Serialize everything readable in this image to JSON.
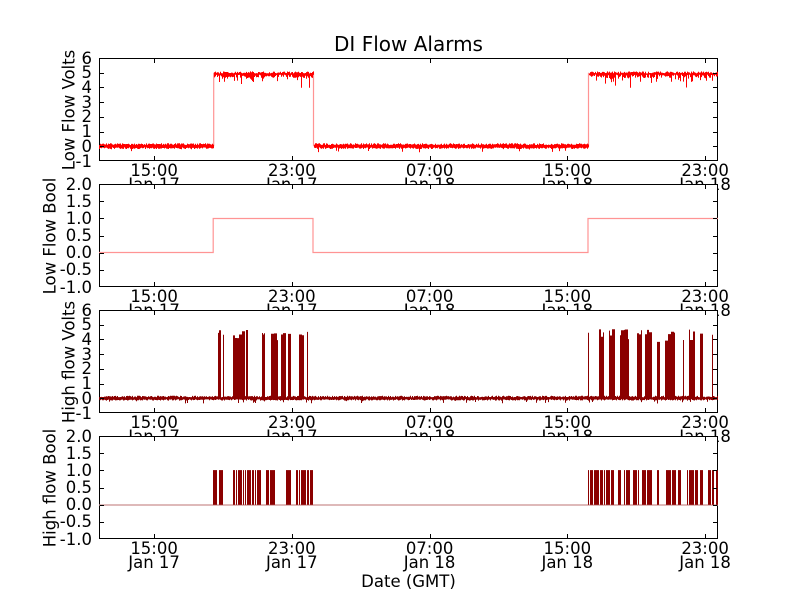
{
  "title": "DI Flow Alarms",
  "xlabel": "Date (GMT)",
  "colors": {
    "red": "#ff0000",
    "red_light": "#ff9494",
    "darkred": "#8b0000",
    "darkred_light": "#c98f8f",
    "axes": "#000000",
    "background": "#ffffff"
  },
  "x_axis": {
    "hours_origin": "Jan 17 00:00 GMT",
    "xlim_hours": [
      11.8,
      47.75
    ],
    "ticks": [
      {
        "hour": 15,
        "time": "15:00",
        "date": "Jan 17"
      },
      {
        "hour": 23,
        "time": "23:00",
        "date": "Jan 17"
      },
      {
        "hour": 31,
        "time": "07:00",
        "date": "Jan 18"
      },
      {
        "hour": 39,
        "time": "15:00",
        "date": "Jan 18"
      },
      {
        "hour": 47,
        "time": "23:00",
        "date": "Jan 18"
      }
    ]
  },
  "chart_data": [
    {
      "type": "line",
      "name": "Low Flow Volts",
      "style": "noisy-analog-step",
      "color_key": "red",
      "ylabel": "Low Flow Volts",
      "ylim": [
        -1,
        6
      ],
      "ytick_vals": [
        6,
        5,
        4,
        3,
        2,
        1,
        0,
        -1
      ],
      "ytick_labels": [
        "6",
        "5",
        "4",
        "3",
        "2",
        "1",
        "0",
        "-1"
      ],
      "steps": [
        {
          "start_h": 11.8,
          "end_h": 18.43,
          "level_volts": 0,
          "noise_v": 0.2
        },
        {
          "start_h": 18.43,
          "end_h": 24.23,
          "level_volts": 5,
          "dips_to_v": 4.0
        },
        {
          "start_h": 24.23,
          "end_h": 40.2,
          "level_volts": 0,
          "noise_v": 0.2
        },
        {
          "start_h": 40.2,
          "end_h": 47.75,
          "level_volts": 5,
          "dips_to_v": 4.2
        }
      ]
    },
    {
      "type": "line",
      "name": "Low Flow Bool",
      "style": "clean-step",
      "color_key": "red_light",
      "ylabel": "Low Flow Bool",
      "ylim": [
        -1,
        2
      ],
      "ytick_vals": [
        2,
        1.5,
        1,
        0.5,
        0,
        -0.5,
        -1
      ],
      "ytick_labels": [
        "2.0",
        "1.5",
        "1.0",
        "0.5",
        "0.0",
        "-0.5",
        "-1.0"
      ],
      "steps": [
        {
          "start_h": 11.8,
          "end_h": 18.43,
          "level_bool": 0
        },
        {
          "start_h": 18.43,
          "end_h": 24.23,
          "level_bool": 1
        },
        {
          "start_h": 24.23,
          "end_h": 40.2,
          "level_bool": 0
        },
        {
          "start_h": 40.2,
          "end_h": 47.75,
          "level_bool": 1
        }
      ]
    },
    {
      "type": "line",
      "name": "High flow Volts",
      "style": "noisy-spike-bursts",
      "color_key": "darkred",
      "ylabel": "High flow Volts",
      "ylim": [
        -1,
        6
      ],
      "ytick_vals": [
        6,
        5,
        4,
        3,
        2,
        1,
        0,
        -1
      ],
      "ytick_labels": [
        "6",
        "5",
        "4",
        "3",
        "2",
        "1",
        "0",
        "-1"
      ],
      "baseline_volts": 0,
      "baseline_noise_v": 0.25,
      "bursts": [
        {
          "start_h": 18.43,
          "end_h": 24.23,
          "spike_min_v": 3.8,
          "spike_max_v": 4.7
        },
        {
          "start_h": 40.2,
          "end_h": 47.75,
          "spike_min_v": 3.8,
          "spike_max_v": 4.7
        }
      ]
    },
    {
      "type": "line",
      "name": "High flow Bool",
      "style": "bool-toggle-bursts",
      "color_key": "darkred",
      "baseline_color_key": "darkred_light",
      "ylabel": "High flow Bool",
      "ylim": [
        -1,
        2
      ],
      "ytick_vals": [
        2,
        1.5,
        1,
        0.5,
        0,
        -0.5,
        -1
      ],
      "ytick_labels": [
        "2.0",
        "1.5",
        "1.0",
        "0.5",
        "0.0",
        "-0.5",
        "-1.0"
      ],
      "baseline_bool": 0,
      "bursts": [
        {
          "start_h": 18.43,
          "end_h": 24.23,
          "toggles_between": [
            0,
            1
          ]
        },
        {
          "start_h": 40.2,
          "end_h": 47.75,
          "toggles_between": [
            0,
            1
          ]
        }
      ]
    }
  ]
}
